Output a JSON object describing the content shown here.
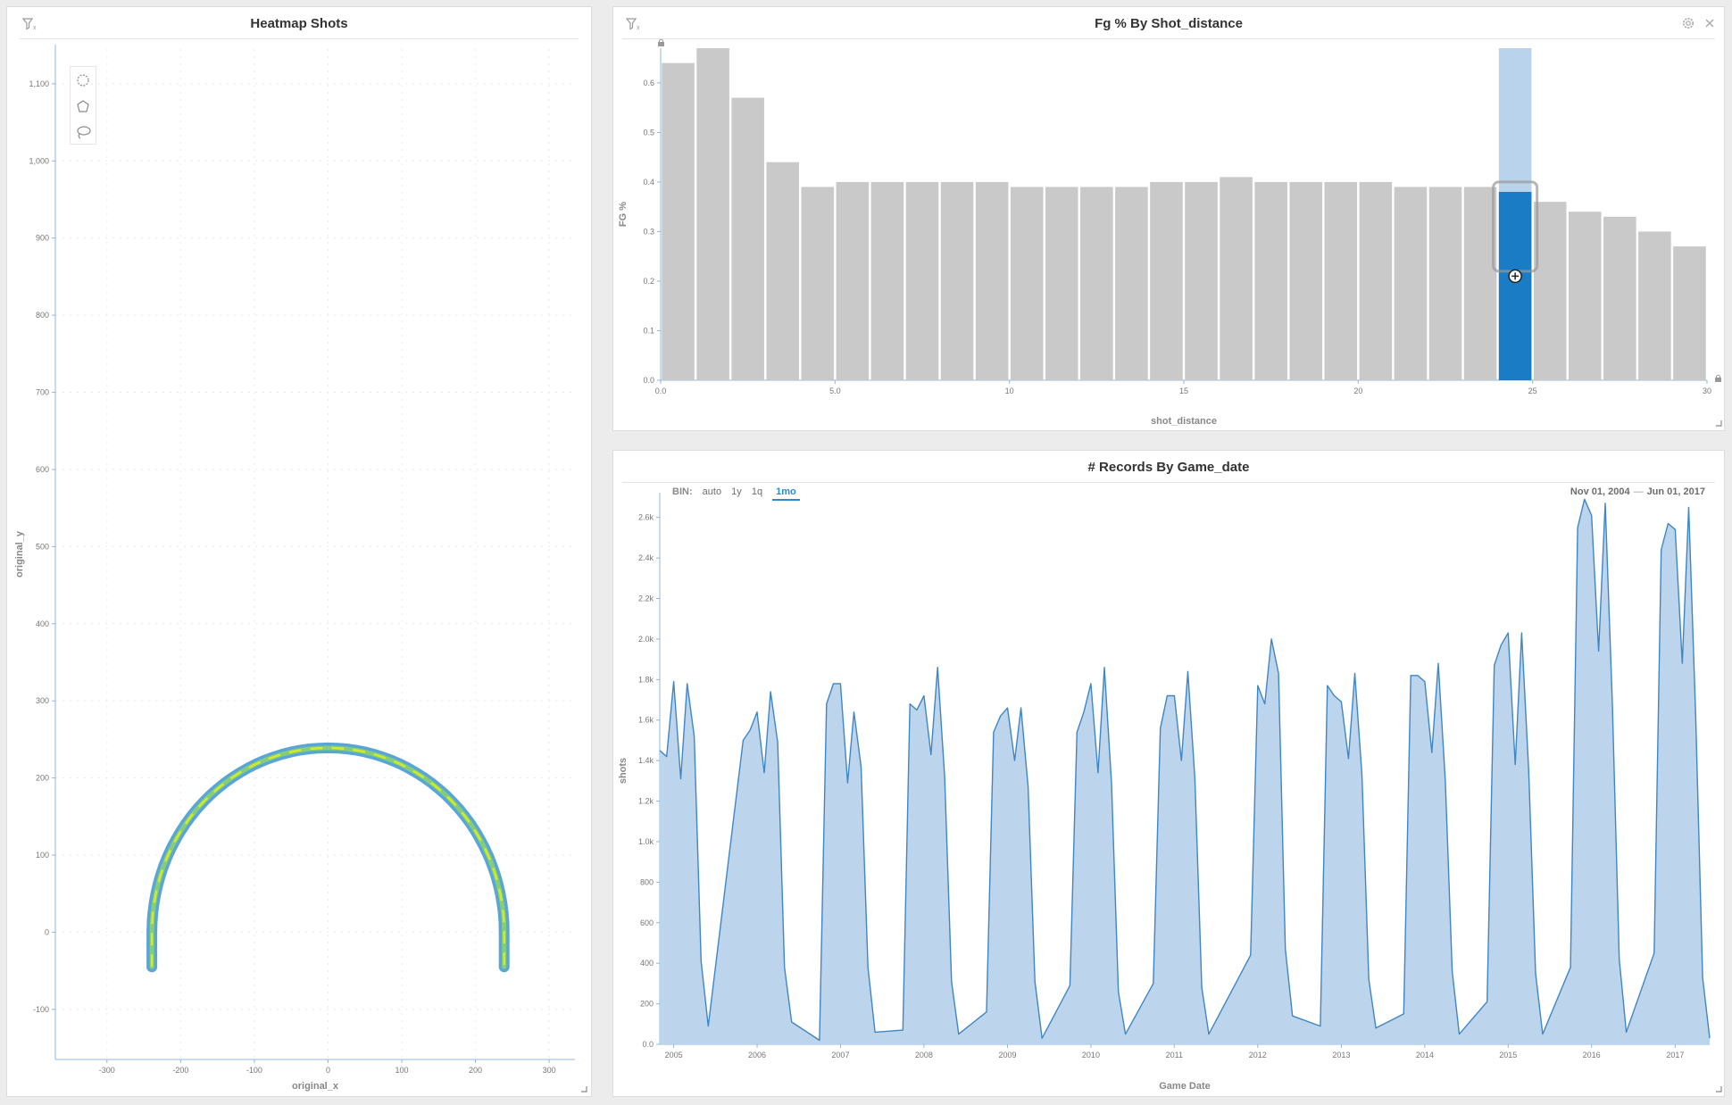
{
  "colors": {
    "accent": "#2a8bd2",
    "bar_gray": "#c9c9c9",
    "bar_selected_dark": "#1a7cc4",
    "bar_selected_light": "#b8d3eb",
    "area_fill": "#b9d3eb",
    "area_line": "#3f86c4",
    "heat_outer": "#5aa5d8",
    "heat_inner": "#d9f01a"
  },
  "icons": {
    "filter": "filter-icon",
    "gear": "gear-icon",
    "close": "close-icon",
    "resize": "resize-handle-icon",
    "lock": "lock-icon",
    "move": "move-icon",
    "circle_select": "circle-select-icon",
    "polygon_select": "polygon-select-icon",
    "lasso_select": "lasso-select-icon"
  },
  "panels": {
    "heatmap": {
      "title": "Heatmap Shots"
    },
    "fg": {
      "title": "Fg % By Shot_distance"
    },
    "records": {
      "title": "# Records By Game_date",
      "bin_label": "BIN:",
      "bin_options": [
        "auto",
        "1y",
        "1q",
        "1mo"
      ],
      "bin_selected": "1mo",
      "date_start": "Nov 01, 2004",
      "date_end": "Jun 01, 2017"
    }
  },
  "chart_data": [
    {
      "type": "heatmap",
      "title": "Heatmap Shots",
      "xlabel": "original_x",
      "ylabel": "original_y",
      "xlim": [
        -370,
        335
      ],
      "ylim": [
        -165,
        1145
      ],
      "xticks": [
        -300,
        -200,
        -100,
        0,
        100,
        200,
        300
      ],
      "yticks": [
        -100,
        0,
        100,
        200,
        300,
        400,
        500,
        600,
        700,
        800,
        900,
        1000,
        1100
      ],
      "ytick_labels": [
        "-100",
        "0",
        "100",
        "200",
        "300",
        "400",
        "500",
        "600",
        "700",
        "800",
        "900",
        "1,000",
        "1,100"
      ],
      "arc": {
        "center_x": 0,
        "center_y": 0,
        "radius": 239,
        "corner_bottom_y": -45
      }
    },
    {
      "type": "bar",
      "title": "Fg % By Shot_distance",
      "xlabel": "shot_distance",
      "ylabel": "FG %",
      "xlim": [
        0,
        30
      ],
      "ylim": [
        0,
        0.67
      ],
      "xticks": [
        0,
        5,
        10,
        15,
        20,
        25,
        30
      ],
      "xtick_labels": [
        "0.0",
        "5.0",
        "10",
        "15",
        "20",
        "25",
        "30"
      ],
      "yticks": [
        0,
        0.1,
        0.2,
        0.3,
        0.4,
        0.5,
        0.6
      ],
      "ytick_labels": [
        "0.0",
        "0.1",
        "0.2",
        "0.3",
        "0.4",
        "0.5",
        "0.6"
      ],
      "bin_width": 1,
      "values": [
        0.64,
        0.67,
        0.57,
        0.44,
        0.39,
        0.4,
        0.4,
        0.4,
        0.4,
        0.4,
        0.39,
        0.39,
        0.39,
        0.39,
        0.4,
        0.4,
        0.41,
        0.4,
        0.4,
        0.4,
        0.4,
        0.39,
        0.39,
        0.39,
        0.38,
        0.36,
        0.34,
        0.33,
        0.3,
        0.27
      ],
      "selected_index": 24,
      "selected_overall_value": 0.67
    },
    {
      "type": "area",
      "title": "# Records By Game_date",
      "xlabel": "Game Date",
      "ylabel": "shots",
      "ylim": [
        0,
        2700
      ],
      "yticks": [
        0,
        200,
        400,
        600,
        800,
        1000,
        1200,
        1400,
        1600,
        1800,
        2000,
        2200,
        2400,
        2600
      ],
      "ytick_labels": [
        "0.0",
        "200",
        "400",
        "600",
        "800",
        "1.0k",
        "1.2k",
        "1.4k",
        "1.6k",
        "1.8k",
        "2.0k",
        "2.2k",
        "2.4k",
        "2.6k"
      ],
      "xlim": [
        "2004-11-01",
        "2017-06-01"
      ],
      "xticks": [
        "2005-01-01",
        "2006-01-01",
        "2007-01-01",
        "2008-01-01",
        "2009-01-01",
        "2010-01-01",
        "2011-01-01",
        "2012-01-01",
        "2013-01-01",
        "2014-01-01",
        "2015-01-01",
        "2016-01-01",
        "2017-01-01"
      ],
      "xtick_labels": [
        "2005",
        "2006",
        "2007",
        "2008",
        "2009",
        "2010",
        "2011",
        "2012",
        "2013",
        "2014",
        "2015",
        "2016",
        "2017"
      ],
      "x": [
        "2004-11-01",
        "2004-12-01",
        "2005-01-01",
        "2005-02-01",
        "2005-03-01",
        "2005-04-01",
        "2005-05-01",
        "2005-06-01",
        "2005-11-01",
        "2005-12-01",
        "2006-01-01",
        "2006-02-01",
        "2006-03-01",
        "2006-04-01",
        "2006-05-01",
        "2006-06-01",
        "2006-10-01",
        "2006-11-01",
        "2006-12-01",
        "2007-01-01",
        "2007-02-01",
        "2007-03-01",
        "2007-04-01",
        "2007-05-01",
        "2007-06-01",
        "2007-10-01",
        "2007-11-01",
        "2007-12-01",
        "2008-01-01",
        "2008-02-01",
        "2008-03-01",
        "2008-04-01",
        "2008-05-01",
        "2008-06-01",
        "2008-10-01",
        "2008-11-01",
        "2008-12-01",
        "2009-01-01",
        "2009-02-01",
        "2009-03-01",
        "2009-04-01",
        "2009-05-01",
        "2009-06-01",
        "2009-10-01",
        "2009-11-01",
        "2009-12-01",
        "2010-01-01",
        "2010-02-01",
        "2010-03-01",
        "2010-04-01",
        "2010-05-01",
        "2010-06-01",
        "2010-10-01",
        "2010-11-01",
        "2010-12-01",
        "2011-01-01",
        "2011-02-01",
        "2011-03-01",
        "2011-04-01",
        "2011-05-01",
        "2011-06-01",
        "2011-12-01",
        "2012-01-01",
        "2012-02-01",
        "2012-03-01",
        "2012-04-01",
        "2012-05-01",
        "2012-06-01",
        "2012-10-01",
        "2012-11-01",
        "2012-12-01",
        "2013-01-01",
        "2013-02-01",
        "2013-03-01",
        "2013-04-01",
        "2013-05-01",
        "2013-06-01",
        "2013-10-01",
        "2013-11-01",
        "2013-12-01",
        "2014-01-01",
        "2014-02-01",
        "2014-03-01",
        "2014-04-01",
        "2014-05-01",
        "2014-06-01",
        "2014-10-01",
        "2014-11-01",
        "2014-12-01",
        "2015-01-01",
        "2015-02-01",
        "2015-03-01",
        "2015-04-01",
        "2015-05-01",
        "2015-06-01",
        "2015-10-01",
        "2015-11-01",
        "2015-12-01",
        "2016-01-01",
        "2016-02-01",
        "2016-03-01",
        "2016-04-01",
        "2016-05-01",
        "2016-06-01",
        "2016-10-01",
        "2016-11-01",
        "2016-12-01",
        "2017-01-01",
        "2017-02-01",
        "2017-03-01",
        "2017-04-01",
        "2017-05-01",
        "2017-06-01"
      ],
      "values": [
        1450,
        1420,
        1790,
        1310,
        1780,
        1520,
        410,
        90,
        1500,
        1550,
        1640,
        1340,
        1740,
        1490,
        380,
        110,
        20,
        1680,
        1780,
        1780,
        1290,
        1640,
        1370,
        380,
        60,
        70,
        1680,
        1650,
        1720,
        1430,
        1860,
        1320,
        310,
        50,
        160,
        1540,
        1620,
        1660,
        1400,
        1660,
        1270,
        310,
        30,
        290,
        1540,
        1640,
        1780,
        1340,
        1860,
        1290,
        260,
        50,
        300,
        1560,
        1720,
        1720,
        1400,
        1840,
        1310,
        280,
        50,
        440,
        1770,
        1680,
        2000,
        1830,
        470,
        140,
        90,
        1770,
        1720,
        1690,
        1410,
        1830,
        1330,
        320,
        80,
        150,
        1820,
        1820,
        1790,
        1440,
        1880,
        1300,
        360,
        50,
        210,
        1870,
        1970,
        2030,
        1380,
        2030,
        1350,
        350,
        50,
        380,
        2550,
        2690,
        2610,
        1940,
        2670,
        1680,
        420,
        60,
        450,
        2440,
        2570,
        2540,
        1880,
        2650,
        1610,
        330,
        30
      ]
    }
  ]
}
